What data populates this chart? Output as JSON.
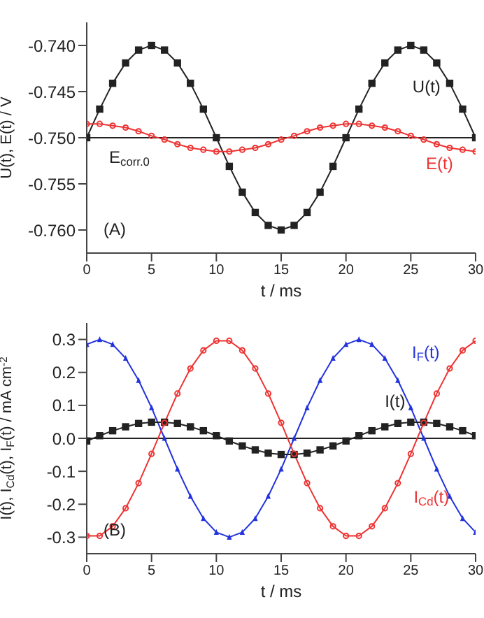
{
  "chart_data": [
    {
      "type": "line",
      "xlabel": "t / ms",
      "ylabel": "U(t), E(t) / V",
      "x": [
        0,
        1,
        2,
        3,
        4,
        5,
        6,
        7,
        8,
        9,
        10,
        11,
        12,
        13,
        14,
        15,
        16,
        17,
        18,
        19,
        20,
        21,
        22,
        23,
        24,
        25,
        26,
        27,
        28,
        29,
        30
      ],
      "xlim": [
        0,
        30
      ],
      "xticks": [
        0,
        5,
        10,
        15,
        20,
        25,
        30
      ],
      "ylim": [
        -0.7625,
        -0.7375
      ],
      "yticks": [
        {
          "value": -0.76,
          "label": "-0.760"
        },
        {
          "value": -0.755,
          "label": "-0.755"
        },
        {
          "value": -0.75,
          "label": "-0.750"
        },
        {
          "value": -0.745,
          "label": "-0.745"
        },
        {
          "value": -0.74,
          "label": "-0.740"
        }
      ],
      "series": [
        {
          "name": "U(t)",
          "color": "#222222",
          "marker": "square",
          "values": [
            -0.75,
            -0.7469,
            -0.7441,
            -0.7419,
            -0.7405,
            -0.74,
            -0.7405,
            -0.7419,
            -0.7441,
            -0.7469,
            -0.75,
            -0.7531,
            -0.7559,
            -0.7581,
            -0.7595,
            -0.76,
            -0.7595,
            -0.7581,
            -0.7559,
            -0.7531,
            -0.75,
            -0.7469,
            -0.7441,
            -0.7419,
            -0.7405,
            -0.74,
            -0.7405,
            -0.7419,
            -0.7441,
            -0.7469,
            -0.75
          ]
        },
        {
          "name": "E(t)",
          "color": "#ee3333",
          "marker": "circle",
          "values": [
            -0.7485,
            -0.7485,
            -0.7487,
            -0.7489,
            -0.7493,
            -0.7498,
            -0.7502,
            -0.7507,
            -0.7511,
            -0.7513,
            -0.7515,
            -0.7515,
            -0.7513,
            -0.7511,
            -0.7507,
            -0.7502,
            -0.7498,
            -0.7493,
            -0.7489,
            -0.7487,
            -0.7485,
            -0.7485,
            -0.7487,
            -0.7489,
            -0.7493,
            -0.7498,
            -0.7502,
            -0.7507,
            -0.7511,
            -0.7513,
            -0.7515
          ]
        }
      ],
      "ref_lines": [
        {
          "axis": "y",
          "value": -0.75,
          "label": "E$_{corr.0}$",
          "color": "#222222"
        }
      ],
      "annotations": [
        "(A)"
      ]
    },
    {
      "type": "line",
      "xlabel": "t / ms",
      "ylabel": "I(t), I$_{Cd}$(t), I$_{F}$(t) / mA cm$^{-2}$",
      "x": [
        0,
        1,
        2,
        3,
        4,
        5,
        6,
        7,
        8,
        9,
        10,
        11,
        12,
        13,
        14,
        15,
        16,
        17,
        18,
        19,
        20,
        21,
        22,
        23,
        24,
        25,
        26,
        27,
        28,
        29,
        30
      ],
      "xlim": [
        0,
        30
      ],
      "xticks": [
        0,
        5,
        10,
        15,
        20,
        25,
        30
      ],
      "ylim": [
        -0.35,
        0.35
      ],
      "yticks": [
        -0.3,
        -0.2,
        -0.1,
        {
          "value": 0,
          "label": "0.0"
        },
        0.1,
        0.2,
        0.3
      ],
      "series": [
        {
          "name": "I$_{F}$(t)",
          "color": "#2233dd",
          "marker": "triangle",
          "values": [
            0.285,
            0.3,
            0.285,
            0.243,
            0.176,
            0.093,
            0,
            -0.093,
            -0.176,
            -0.243,
            -0.285,
            -0.3,
            -0.285,
            -0.243,
            -0.176,
            -0.093,
            0,
            0.093,
            0.176,
            0.243,
            0.285,
            0.3,
            0.285,
            0.243,
            0.176,
            0.093,
            0,
            -0.093,
            -0.176,
            -0.243,
            -0.285
          ]
        },
        {
          "name": "I(t)",
          "color": "#222222",
          "marker": "square",
          "values": [
            -0.008,
            0.008,
            0.023,
            0.035,
            0.045,
            0.049,
            0.049,
            0.045,
            0.035,
            0.023,
            0.008,
            -0.008,
            -0.023,
            -0.035,
            -0.045,
            -0.049,
            -0.049,
            -0.045,
            -0.035,
            -0.023,
            -0.008,
            0.008,
            0.023,
            0.035,
            0.045,
            0.049,
            0.049,
            0.045,
            0.035,
            0.023,
            0.008
          ]
        },
        {
          "name": "I$_{Cd}$(t)",
          "color": "#ee3333",
          "marker": "circle",
          "values": [
            -0.296,
            -0.296,
            -0.267,
            -0.212,
            -0.136,
            -0.047,
            0.047,
            0.136,
            0.212,
            0.267,
            0.296,
            0.296,
            0.267,
            0.212,
            0.136,
            0.047,
            -0.047,
            -0.136,
            -0.212,
            -0.267,
            -0.296,
            -0.296,
            -0.267,
            -0.212,
            -0.136,
            -0.047,
            0.047,
            0.136,
            0.212,
            0.267,
            0.296
          ]
        }
      ],
      "ref_lines": [
        {
          "axis": "y",
          "value": 0,
          "color": "#222222"
        }
      ],
      "annotations": [
        "(B)"
      ]
    }
  ]
}
